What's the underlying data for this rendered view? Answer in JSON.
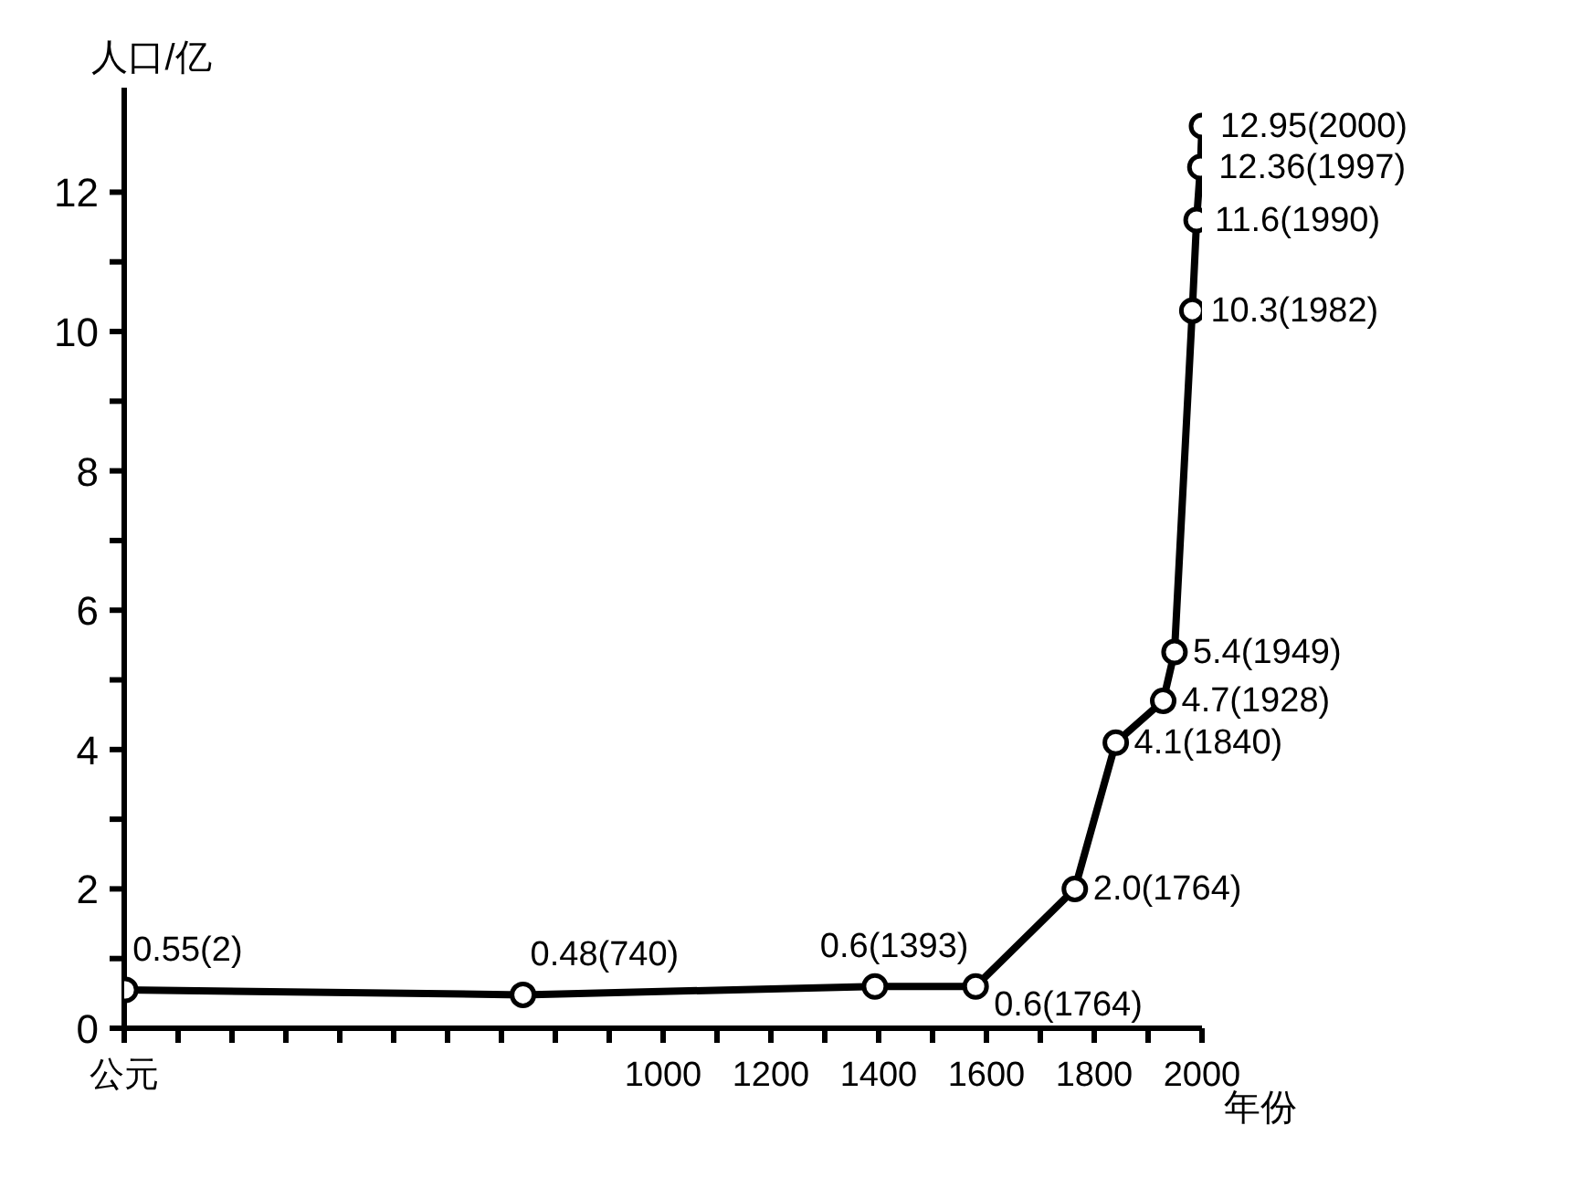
{
  "chart_data": {
    "type": "line",
    "xlabel": "年份",
    "ylabel": "人口/亿",
    "x": [
      2,
      740,
      1393,
      1580,
      1764,
      1840,
      1928,
      1949,
      1982,
      1990,
      1997,
      2000
    ],
    "series": [
      {
        "color": "#000000",
        "values": [
          0.55,
          0.48,
          0.6,
          0.6,
          2.0,
          4.1,
          4.7,
          5.4,
          10.3,
          11.6,
          12.36,
          12.95
        ],
        "value_labels": [
          "0.55(2)",
          "0.48(740)",
          "0.6(1393)",
          "0.6(1764)",
          "2.0(1764)",
          "4.1(1840)",
          "4.7(1928)",
          "5.4(1949)",
          "10.3(1982)",
          "11.6(1990)",
          "12.36(1997)",
          "12.95(2000)"
        ]
      }
    ],
    "xlim": [
      0,
      2000
    ],
    "ylim": [
      0,
      13.5
    ],
    "xticks": [
      {
        "value": 0,
        "label": "公元"
      },
      {
        "value": 100,
        "label": null
      },
      {
        "value": 200,
        "label": null
      },
      {
        "value": 300,
        "label": null
      },
      {
        "value": 400,
        "label": null
      },
      {
        "value": 500,
        "label": null
      },
      {
        "value": 600,
        "label": null
      },
      {
        "value": 700,
        "label": null
      },
      {
        "value": 800,
        "label": null
      },
      {
        "value": 900,
        "label": null
      },
      1000,
      {
        "value": 1100,
        "label": null
      },
      1200,
      {
        "value": 1300,
        "label": null
      },
      1400,
      {
        "value": 1500,
        "label": null
      },
      1600,
      {
        "value": 1700,
        "label": null
      },
      1800,
      {
        "value": 1900,
        "label": null
      },
      2000
    ],
    "yticks": [
      0,
      {
        "value": 1,
        "label": null
      },
      2,
      {
        "value": 3,
        "label": null
      },
      4,
      {
        "value": 5,
        "label": null
      },
      6,
      {
        "value": 7,
        "label": null
      },
      8,
      {
        "value": 9,
        "label": null
      },
      10,
      {
        "value": 11,
        "label": null
      },
      12
    ],
    "grid": false,
    "legend": false,
    "marker": "circle",
    "line_style": "solid"
  }
}
